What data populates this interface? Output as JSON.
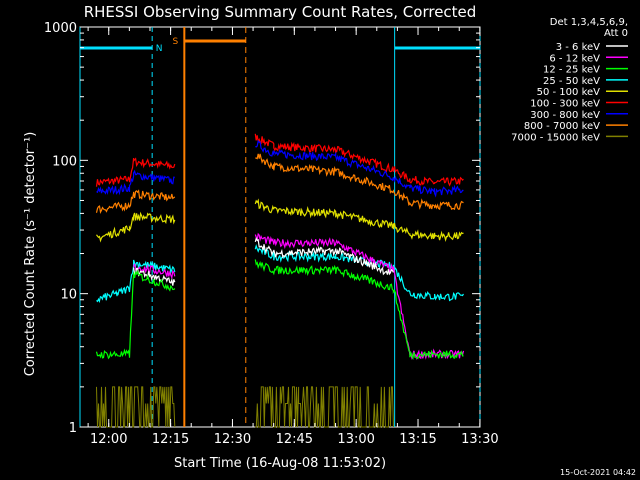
{
  "chart_data": {
    "type": "line",
    "title": "RHESSI Observing Summary Count Rates, Corrected",
    "xlabel": "Start Time (16-Aug-08 11:53:02)",
    "ylabel": "Corrected Count Rate (s⁻¹ detector⁻¹)",
    "y_scale": "log",
    "ylim": [
      1,
      1000
    ],
    "xlim_minutes": [
      0,
      97
    ],
    "x_tick_labels": [
      "12:00",
      "12:15",
      "12:30",
      "12:45",
      "13:00",
      "13:15",
      "13:30"
    ],
    "x_tick_minutes": [
      6.97,
      21.97,
      36.97,
      51.97,
      66.97,
      81.97,
      96.97
    ],
    "y_tick_labels": [
      "1",
      "10",
      "100",
      "1000"
    ],
    "y_tick_values": [
      1,
      10,
      100,
      1000
    ],
    "legend_header": [
      "Det 1,3,4,5,6,9,",
      "Att 0"
    ],
    "legend_position": "top-right, outside plot",
    "timestamp": "15-Oct-2021 04:42",
    "flag_labels": [
      {
        "text": "N",
        "color": "#00e0ff"
      },
      {
        "text": "S",
        "color": "#ff8000"
      }
    ],
    "night_intervals_minutes": [
      [
        0,
        17.5
      ],
      [
        76.3,
        97
      ]
    ],
    "saa_interval_minutes": [
      25.3,
      40.2
    ],
    "gap_minutes": [
      23.8,
      42.0
    ],
    "series": [
      {
        "name": "3 - 6 keV",
        "color": "#ffffff"
      },
      {
        "name": "6 - 12 keV",
        "color": "#ff00ff"
      },
      {
        "name": "12 - 25 keV",
        "color": "#00ff00"
      },
      {
        "name": "25 - 50 keV",
        "color": "#00ffff"
      },
      {
        "name": "50 - 100 keV",
        "color": "#e0e000"
      },
      {
        "name": "100 - 300 keV",
        "color": "#ff0000"
      },
      {
        "name": "300 - 800 keV",
        "color": "#0000ff"
      },
      {
        "name": "800 - 7000 keV",
        "color": "#ff8000"
      },
      {
        "name": "7000 - 15000 keV",
        "color": "#808000"
      }
    ],
    "series_levels": [
      {
        "name": "100 - 300 keV",
        "segments": [
          [
            [
              4,
              68
            ],
            [
              12,
              72
            ],
            [
              13,
              98
            ],
            [
              23,
              90
            ]
          ],
          [
            [
              42.5,
              150
            ],
            [
              47,
              128
            ],
            [
              62,
              120
            ],
            [
              76,
              85
            ],
            [
              80,
              72
            ],
            [
              86,
              68
            ],
            [
              93,
              70
            ]
          ]
        ]
      },
      {
        "name": "300 - 800 keV",
        "segments": [
          [
            [
              4,
              58
            ],
            [
              12,
              62
            ],
            [
              13,
              78
            ],
            [
              23,
              70
            ]
          ],
          [
            [
              42.5,
              135
            ],
            [
              47,
              112
            ],
            [
              62,
              105
            ],
            [
              76,
              75
            ],
            [
              80,
              62
            ],
            [
              86,
              58
            ],
            [
              93,
              60
            ]
          ]
        ]
      },
      {
        "name": "800 - 7000 keV",
        "segments": [
          [
            [
              4,
              43
            ],
            [
              12,
              46
            ],
            [
              13,
              56
            ],
            [
              23,
              52
            ]
          ],
          [
            [
              42.5,
              110
            ],
            [
              47,
              90
            ],
            [
              62,
              82
            ],
            [
              76,
              60
            ],
            [
              80,
              48
            ],
            [
              86,
              46
            ],
            [
              93,
              46
            ]
          ]
        ]
      },
      {
        "name": "50 - 100 keV",
        "segments": [
          [
            [
              4,
              26
            ],
            [
              12,
              31
            ],
            [
              13,
              38
            ],
            [
              23,
              36
            ]
          ],
          [
            [
              42.5,
              48
            ],
            [
              47,
              42
            ],
            [
              62,
              40
            ],
            [
              76,
              32
            ],
            [
              80,
              28
            ],
            [
              86,
              27
            ],
            [
              93,
              27
            ]
          ]
        ]
      },
      {
        "name": "25 - 50 keV",
        "segments": [
          [
            [
              4,
              9
            ],
            [
              9,
              10
            ],
            [
              12,
              11
            ],
            [
              13,
              17
            ],
            [
              23,
              15
            ]
          ],
          [
            [
              42.5,
              22
            ],
            [
              47,
              19
            ],
            [
              62,
              19
            ],
            [
              76,
              16
            ],
            [
              80,
              10
            ],
            [
              86,
              9.5
            ],
            [
              93,
              9.5
            ]
          ]
        ]
      },
      {
        "name": "6 - 12 keV",
        "segments": [
          [
            [
              13,
              16
            ],
            [
              23,
              14
            ]
          ],
          [
            [
              42.5,
              27
            ],
            [
              47,
              24
            ],
            [
              62,
              24
            ],
            [
              76,
              15
            ],
            [
              80,
              3.5
            ],
            [
              93,
              3.5
            ]
          ]
        ]
      },
      {
        "name": "3 - 6 keV",
        "segments": [
          [
            [
              13,
              15
            ],
            [
              23,
              12
            ]
          ],
          [
            [
              42.5,
              25
            ],
            [
              47,
              20
            ],
            [
              62,
              21
            ],
            [
              76,
              14
            ]
          ]
        ]
      },
      {
        "name": "12 - 25 keV",
        "segments": [
          [
            [
              4,
              3.5
            ],
            [
              12,
              3.5
            ],
            [
              13,
              14
            ],
            [
              23,
              11
            ]
          ],
          [
            [
              42.5,
              17
            ],
            [
              47,
              15
            ],
            [
              62,
              15
            ],
            [
              76,
              11
            ],
            [
              80,
              3.5
            ],
            [
              93,
              3.5
            ]
          ]
        ]
      },
      {
        "name": "7000 - 15000 keV",
        "segments": [
          [
            [
              4,
              1.5
            ],
            [
              23,
              1.5
            ]
          ],
          [
            [
              42.5,
              1.5
            ],
            [
              53,
              1.6
            ],
            [
              66,
              2
            ],
            [
              76,
              1.5
            ]
          ]
        ]
      }
    ]
  }
}
